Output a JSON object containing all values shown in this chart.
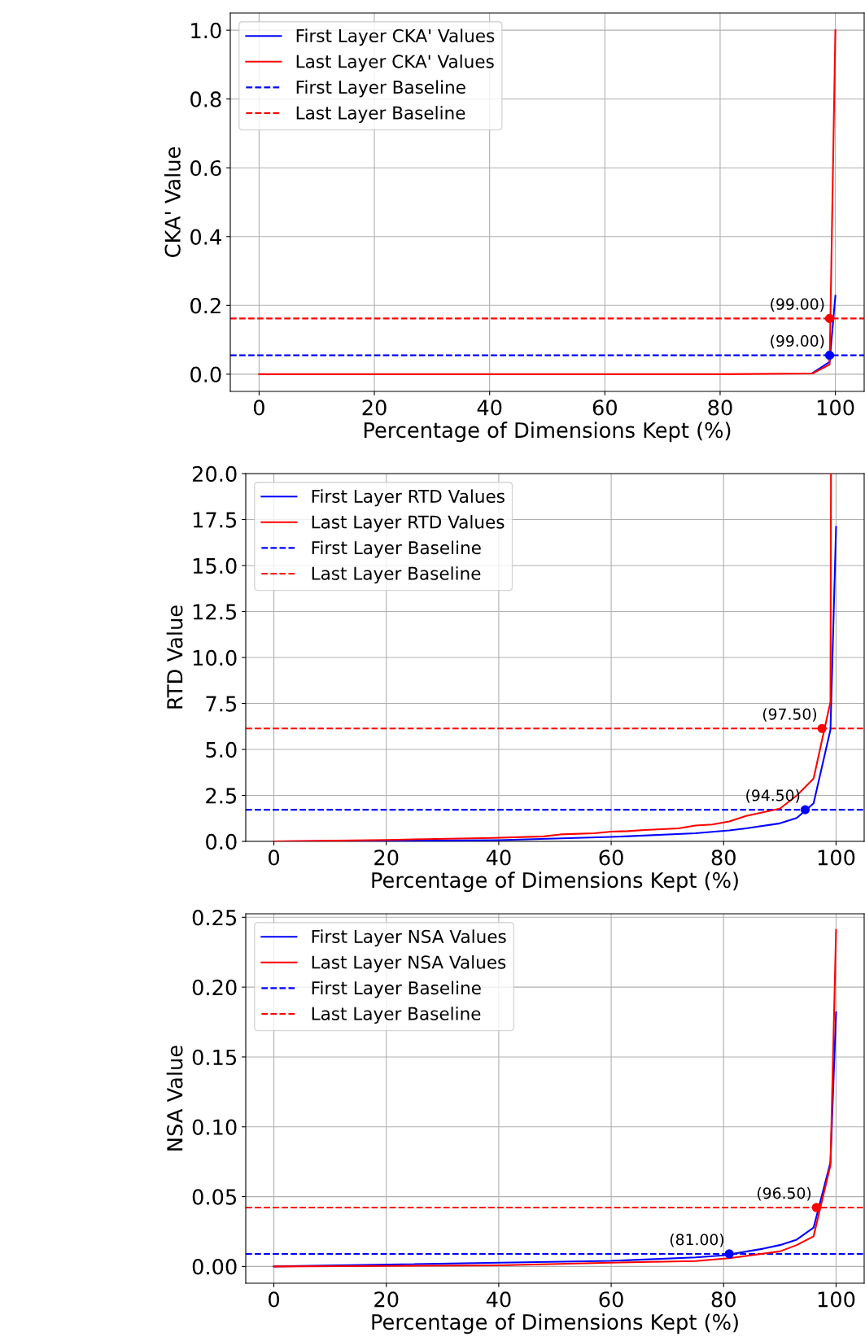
{
  "chart_data": [
    {
      "type": "line",
      "xlabel": "Percentage of Dimensions Kept (%)",
      "ylabel": "CKA' Value",
      "xlim": [
        -5,
        105
      ],
      "xticks": [
        0,
        20,
        40,
        60,
        80,
        100
      ],
      "ylim": [
        -0.05,
        1.05
      ],
      "yticks": [
        {
          "value": 0,
          "label": "0.0"
        },
        {
          "value": 0.2,
          "label": "0.2"
        },
        {
          "value": 0.4,
          "label": "0.4"
        },
        {
          "value": 0.6,
          "label": "0.6"
        },
        {
          "value": 0.8,
          "label": "0.8"
        },
        {
          "value": 1,
          "label": "1.0"
        }
      ],
      "grid": true,
      "legend": "top left",
      "marker": "none",
      "line_style": "solid",
      "series": [
        {
          "name": "First Layer CKA' Values",
          "color": "#0000ff",
          "x": [
            96,
            99,
            100
          ],
          "values": [
            0.003,
            0.036,
            0.228
          ]
        },
        {
          "name": "Last Layer CKA' Values",
          "color": "#ff0000",
          "x": [
            0,
            20,
            40,
            60,
            80,
            96,
            99,
            100
          ],
          "values": [
            0,
            0,
            0,
            0,
            0,
            0.002,
            0.028,
            1.0
          ]
        },
        {
          "type": "scatter",
          "marker": "circle",
          "color": "#0000ff",
          "x": [
            99
          ],
          "values": [
            0.055
          ]
        },
        {
          "type": "scatter",
          "marker": "circle",
          "color": "#ff0000",
          "x": [
            99
          ],
          "values": [
            0.162
          ]
        }
      ],
      "ref_lines": [
        {
          "axis": "y",
          "value": 0.055,
          "label": "First Layer Baseline",
          "color": "#0000ff",
          "line_style": "dashed"
        },
        {
          "axis": "y",
          "value": 0.162,
          "label": "Last Layer Baseline",
          "color": "#ff0000",
          "line_style": "dashed"
        }
      ],
      "annotations": [
        {
          "text": "(99.00)",
          "x": 99,
          "y": 0.162
        },
        {
          "text": "(99.00)",
          "x": 99,
          "y": 0.055
        }
      ]
    },
    {
      "type": "line",
      "xlabel": "Percentage of Dimensions Kept (%)",
      "ylabel": "RTD Value",
      "xlim": [
        -5,
        105
      ],
      "xticks": [
        0,
        20,
        40,
        60,
        80,
        100
      ],
      "ylim": [
        0,
        20
      ],
      "yticks": [
        {
          "value": 0,
          "label": "0.0"
        },
        {
          "value": 2.5,
          "label": "2.5"
        },
        {
          "value": 5,
          "label": "5.0"
        },
        {
          "value": 7.5,
          "label": "7.5"
        },
        {
          "value": 10,
          "label": "10.0"
        },
        {
          "value": 12.5,
          "label": "12.5"
        },
        {
          "value": 15,
          "label": "15.0"
        },
        {
          "value": 17.5,
          "label": "17.5"
        },
        {
          "value": 20,
          "label": "20.0"
        }
      ],
      "grid": true,
      "legend": "top left",
      "marker": "none",
      "line_style": "solid",
      "series": [
        {
          "name": "First Layer RTD Values",
          "color": "#0000ff",
          "x": [
            0,
            20,
            40,
            60,
            75,
            81,
            84,
            90,
            93,
            96,
            99,
            100
          ],
          "values": [
            0,
            0.03,
            0.07,
            0.24,
            0.44,
            0.6,
            0.71,
            0.98,
            1.27,
            2.07,
            6.07,
            17.1
          ]
        },
        {
          "name": "Last Layer RTD Values",
          "color": "#ff0000",
          "x": [
            0,
            20,
            39,
            48,
            51,
            57,
            60,
            63,
            66,
            72,
            75,
            78,
            81,
            84,
            90,
            93,
            96,
            99,
            99.1
          ],
          "values": [
            0,
            0.08,
            0.19,
            0.27,
            0.38,
            0.44,
            0.53,
            0.56,
            0.62,
            0.71,
            0.86,
            0.92,
            1.08,
            1.38,
            1.78,
            2.49,
            3.42,
            7.59,
            20
          ]
        },
        {
          "type": "scatter",
          "marker": "circle",
          "color": "#0000ff",
          "x": [
            94.5
          ],
          "values": [
            1.72
          ]
        },
        {
          "type": "scatter",
          "marker": "circle",
          "color": "#ff0000",
          "x": [
            97.5
          ],
          "values": [
            6.14
          ]
        }
      ],
      "ref_lines": [
        {
          "axis": "y",
          "value": 1.72,
          "label": "First Layer Baseline",
          "color": "#0000ff",
          "line_style": "dashed"
        },
        {
          "axis": "y",
          "value": 6.14,
          "label": "Last Layer Baseline",
          "color": "#ff0000",
          "line_style": "dashed"
        }
      ],
      "annotations": [
        {
          "text": "(97.50)",
          "x": 97.5,
          "y": 6.14
        },
        {
          "text": "(94.50)",
          "x": 94.5,
          "y": 1.72
        }
      ]
    },
    {
      "type": "line",
      "xlabel": "Percentage of Dimensions Kept (%)",
      "ylabel": "NSA Value",
      "xlim": [
        -5,
        105
      ],
      "xticks": [
        0,
        20,
        40,
        60,
        80,
        100
      ],
      "ylim": [
        -0.012,
        0.2525
      ],
      "yticks": [
        {
          "value": 0,
          "label": "0.00"
        },
        {
          "value": 0.05,
          "label": "0.05"
        },
        {
          "value": 0.1,
          "label": "0.10"
        },
        {
          "value": 0.15,
          "label": "0.15"
        },
        {
          "value": 0.2,
          "label": "0.20"
        },
        {
          "value": 0.25,
          "label": "0.25"
        }
      ],
      "grid": true,
      "legend": "top left",
      "marker": "none",
      "line_style": "solid",
      "series": [
        {
          "name": "First Layer NSA Values",
          "color": "#0000ff",
          "x": [
            0,
            60,
            75,
            80,
            87,
            90,
            93,
            96,
            99,
            100
          ],
          "values": [
            0,
            0.004,
            0.0065,
            0.008,
            0.0127,
            0.0153,
            0.0192,
            0.0278,
            0.0745,
            0.182
          ]
        },
        {
          "name": "Last Layer NSA Values",
          "color": "#ff0000",
          "x": [
            0,
            20,
            40,
            60,
            75,
            81,
            90,
            93,
            96,
            99,
            100
          ],
          "values": [
            0,
            0.0004,
            0.0008,
            0.0027,
            0.0039,
            0.0059,
            0.0108,
            0.0153,
            0.0216,
            0.0725,
            0.241
          ]
        },
        {
          "type": "scatter",
          "marker": "circle",
          "color": "#0000ff",
          "x": [
            81
          ],
          "values": [
            0.009
          ]
        },
        {
          "type": "scatter",
          "marker": "circle",
          "color": "#ff0000",
          "x": [
            96.5
          ],
          "values": [
            0.0422
          ]
        }
      ],
      "ref_lines": [
        {
          "axis": "y",
          "value": 0.009,
          "label": "First Layer Baseline",
          "color": "#0000ff",
          "line_style": "dashed"
        },
        {
          "axis": "y",
          "value": 0.0422,
          "label": "Last Layer Baseline",
          "color": "#ff0000",
          "line_style": "dashed"
        }
      ],
      "annotations": [
        {
          "text": "(96.50)",
          "x": 96.5,
          "y": 0.0422
        },
        {
          "text": "(81.00)",
          "x": 81,
          "y": 0.009
        }
      ]
    }
  ]
}
